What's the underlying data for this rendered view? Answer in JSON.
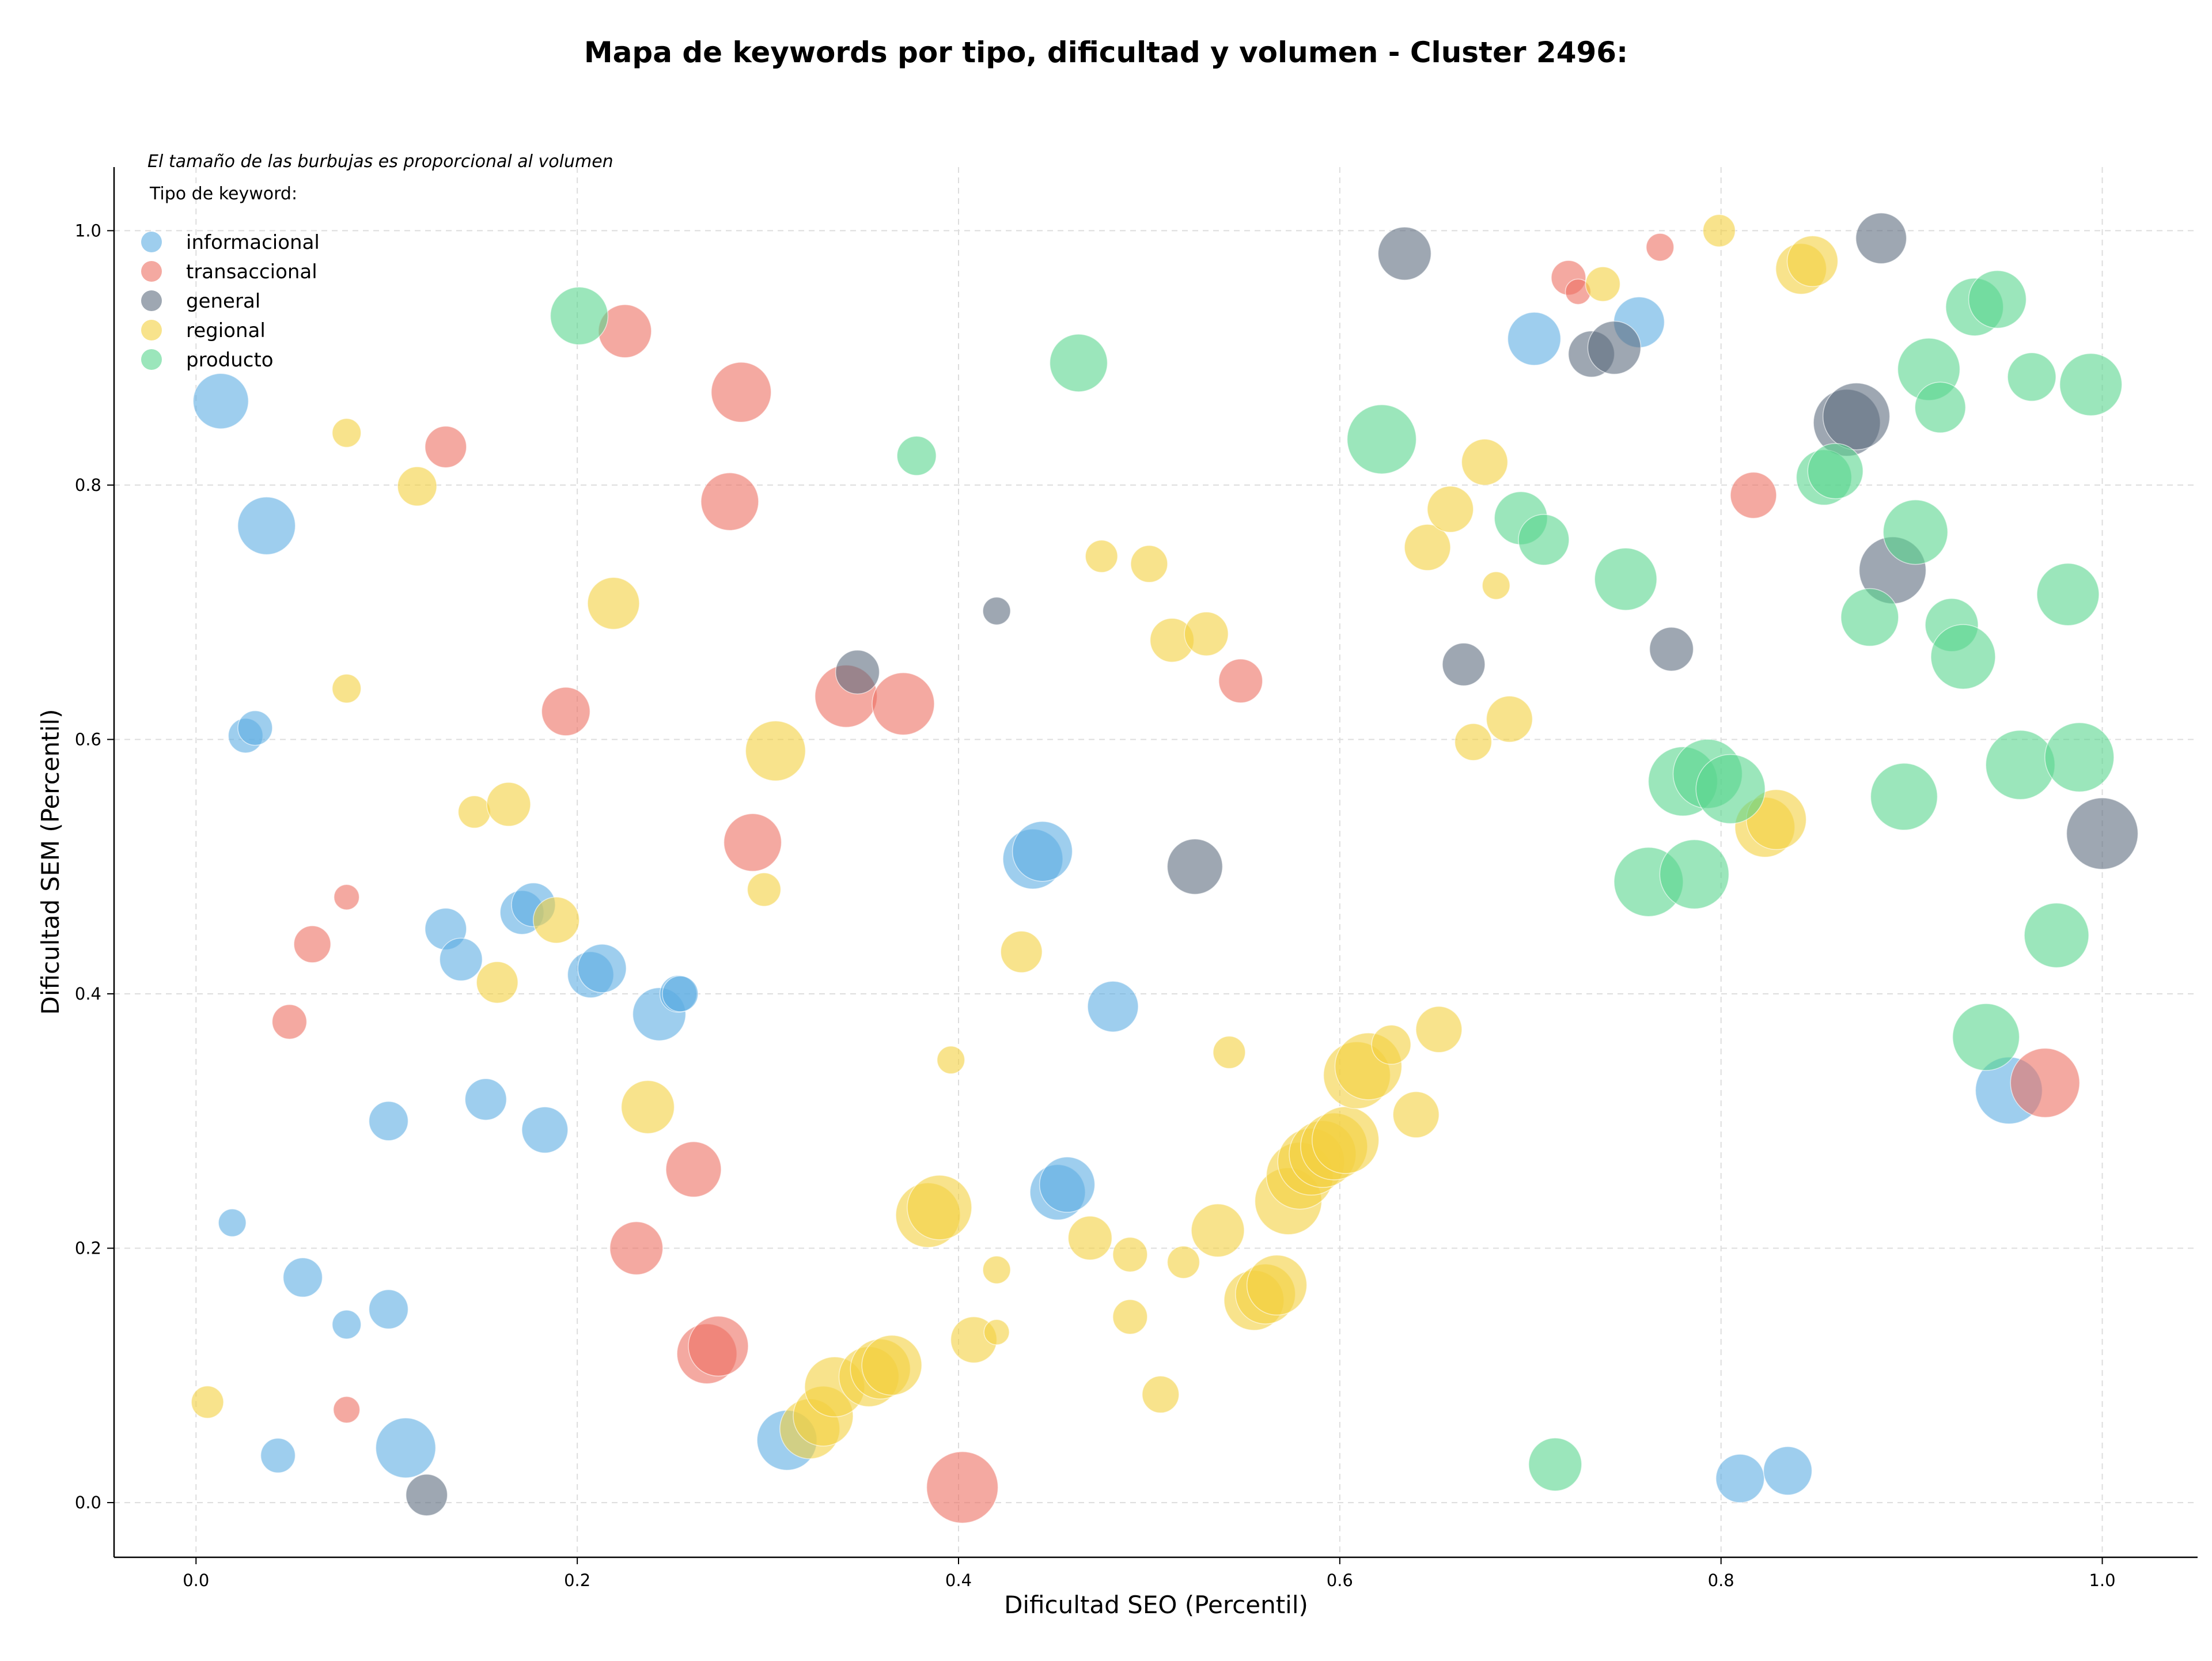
{
  "chart_data": {
    "type": "scatter",
    "title": "Mapa de keywords por tipo, dificultad y volumen - Cluster 2496:",
    "xlabel": "Dificultad SEO (Percentil)",
    "ylabel": "Dificultad SEM (Percentil)",
    "xlim": [
      -0.043,
      1.05
    ],
    "ylim": [
      -0.043,
      1.05
    ],
    "xticks": [
      "0.0",
      "0.2",
      "0.4",
      "0.6",
      "0.8",
      "1.0"
    ],
    "yticks": [
      "0.0",
      "0.2",
      "0.4",
      "0.6",
      "0.8",
      "1.0"
    ],
    "grid": true,
    "legend_position": "top-left",
    "legend_title": "Tipo de keyword:",
    "note": "El tamaño de las burbujas es proporcional al volumen",
    "series": [
      {
        "name": "informacional",
        "color": "#5dade2",
        "points": [
          [
            0.013,
            0.866,
            48
          ],
          [
            0.037,
            0.768,
            50
          ],
          [
            0.026,
            0.603,
            30
          ],
          [
            0.031,
            0.609,
            30
          ],
          [
            0.019,
            0.22,
            24
          ],
          [
            0.056,
            0.177,
            34
          ],
          [
            0.043,
            0.037,
            30
          ],
          [
            0.079,
            0.14,
            25
          ],
          [
            0.101,
            0.152,
            34
          ],
          [
            0.101,
            0.3,
            34
          ],
          [
            0.11,
            0.043,
            52
          ],
          [
            0.131,
            0.451,
            36
          ],
          [
            0.139,
            0.427,
            37
          ],
          [
            0.152,
            0.317,
            36
          ],
          [
            0.171,
            0.464,
            38
          ],
          [
            0.177,
            0.47,
            38
          ],
          [
            0.183,
            0.293,
            40
          ],
          [
            0.207,
            0.415,
            40
          ],
          [
            0.213,
            0.42,
            42
          ],
          [
            0.243,
            0.384,
            46
          ],
          [
            0.253,
            0.4,
            32
          ],
          [
            0.254,
            0.4,
            31
          ],
          [
            0.31,
            0.049,
            52
          ],
          [
            0.439,
            0.506,
            52
          ],
          [
            0.444,
            0.512,
            52
          ],
          [
            0.452,
            0.244,
            48
          ],
          [
            0.457,
            0.25,
            48
          ],
          [
            0.481,
            0.39,
            44
          ],
          [
            0.702,
            0.915,
            46
          ],
          [
            0.757,
            0.928,
            44
          ],
          [
            0.81,
            0.019,
            42
          ],
          [
            0.835,
            0.025,
            42
          ],
          [
            0.951,
            0.324,
            58
          ]
        ]
      },
      {
        "name": "transaccional",
        "color": "#ec7063",
        "points": [
          [
            0.049,
            0.378,
            30
          ],
          [
            0.061,
            0.439,
            32
          ],
          [
            0.079,
            0.476,
            22
          ],
          [
            0.079,
            0.073,
            23
          ],
          [
            0.131,
            0.83,
            36
          ],
          [
            0.194,
            0.622,
            42
          ],
          [
            0.225,
            0.921,
            46
          ],
          [
            0.231,
            0.2,
            46
          ],
          [
            0.261,
            0.262,
            48
          ],
          [
            0.268,
            0.117,
            52
          ],
          [
            0.274,
            0.123,
            52
          ],
          [
            0.28,
            0.787,
            50
          ],
          [
            0.286,
            0.873,
            52
          ],
          [
            0.292,
            0.519,
            50
          ],
          [
            0.341,
            0.634,
            54
          ],
          [
            0.371,
            0.628,
            54
          ],
          [
            0.402,
            0.012,
            62
          ],
          [
            0.548,
            0.646,
            38
          ],
          [
            0.72,
            0.963,
            30
          ],
          [
            0.725,
            0.952,
            22
          ],
          [
            0.768,
            0.987,
            24
          ],
          [
            0.817,
            0.792,
            40
          ],
          [
            0.97,
            0.33,
            60
          ]
        ]
      },
      {
        "name": "general",
        "color": "#5d6d7e",
        "points": [
          [
            0.121,
            0.006,
            36
          ],
          [
            0.347,
            0.653,
            38
          ],
          [
            0.42,
            0.701,
            24
          ],
          [
            0.524,
            0.5,
            48
          ],
          [
            0.634,
            0.982,
            46
          ],
          [
            0.665,
            0.659,
            37
          ],
          [
            0.732,
            0.903,
            40
          ],
          [
            0.744,
            0.908,
            46
          ],
          [
            0.774,
            0.671,
            38
          ],
          [
            0.866,
            0.849,
            58
          ],
          [
            0.871,
            0.854,
            58
          ],
          [
            0.884,
            0.994,
            44
          ],
          [
            0.89,
            0.733,
            58
          ],
          [
            1.0,
            0.526,
            62
          ]
        ]
      },
      {
        "name": "regional",
        "color": "#f4d03f",
        "points": [
          [
            0.006,
            0.079,
            28
          ],
          [
            0.079,
            0.841,
            25
          ],
          [
            0.079,
            0.64,
            25
          ],
          [
            0.116,
            0.799,
            34
          ],
          [
            0.146,
            0.543,
            28
          ],
          [
            0.158,
            0.409,
            36
          ],
          [
            0.164,
            0.549,
            38
          ],
          [
            0.189,
            0.458,
            40
          ],
          [
            0.219,
            0.707,
            45
          ],
          [
            0.237,
            0.311,
            46
          ],
          [
            0.298,
            0.482,
            29
          ],
          [
            0.304,
            0.591,
            52
          ],
          [
            0.322,
            0.058,
            52
          ],
          [
            0.329,
            0.068,
            52
          ],
          [
            0.335,
            0.091,
            52
          ],
          [
            0.353,
            0.099,
            52
          ],
          [
            0.359,
            0.105,
            52
          ],
          [
            0.365,
            0.108,
            52
          ],
          [
            0.384,
            0.226,
            56
          ],
          [
            0.39,
            0.232,
            56
          ],
          [
            0.396,
            0.348,
            24
          ],
          [
            0.408,
            0.128,
            40
          ],
          [
            0.42,
            0.183,
            24
          ],
          [
            0.42,
            0.134,
            22
          ],
          [
            0.433,
            0.433,
            36
          ],
          [
            0.469,
            0.208,
            38
          ],
          [
            0.475,
            0.744,
            28
          ],
          [
            0.49,
            0.195,
            30
          ],
          [
            0.49,
            0.146,
            30
          ],
          [
            0.5,
            0.738,
            32
          ],
          [
            0.506,
            0.085,
            32
          ],
          [
            0.512,
            0.678,
            38
          ],
          [
            0.518,
            0.189,
            28
          ],
          [
            0.53,
            0.683,
            38
          ],
          [
            0.536,
            0.214,
            46
          ],
          [
            0.542,
            0.354,
            28
          ],
          [
            0.555,
            0.159,
            52
          ],
          [
            0.561,
            0.164,
            52
          ],
          [
            0.567,
            0.171,
            52
          ],
          [
            0.573,
            0.237,
            58
          ],
          [
            0.579,
            0.257,
            58
          ],
          [
            0.585,
            0.268,
            58
          ],
          [
            0.591,
            0.274,
            58
          ],
          [
            0.597,
            0.28,
            58
          ],
          [
            0.603,
            0.285,
            58
          ],
          [
            0.609,
            0.336,
            58
          ],
          [
            0.615,
            0.343,
            58
          ],
          [
            0.627,
            0.36,
            34
          ],
          [
            0.64,
            0.305,
            40
          ],
          [
            0.646,
            0.751,
            40
          ],
          [
            0.652,
            0.372,
            40
          ],
          [
            0.658,
            0.781,
            40
          ],
          [
            0.67,
            0.598,
            32
          ],
          [
            0.676,
            0.818,
            40
          ],
          [
            0.682,
            0.721,
            24
          ],
          [
            0.689,
            0.616,
            40
          ],
          [
            0.738,
            0.958,
            30
          ],
          [
            0.799,
            1.0,
            28
          ],
          [
            0.823,
            0.531,
            52
          ],
          [
            0.829,
            0.537,
            52
          ],
          [
            0.842,
            0.97,
            44
          ],
          [
            0.848,
            0.976,
            44
          ]
        ]
      },
      {
        "name": "producto",
        "color": "#58d68d",
        "points": [
          [
            0.201,
            0.933,
            50
          ],
          [
            0.378,
            0.823,
            34
          ],
          [
            0.463,
            0.896,
            50
          ],
          [
            0.622,
            0.836,
            60
          ],
          [
            0.695,
            0.774,
            46
          ],
          [
            0.707,
            0.757,
            44
          ],
          [
            0.713,
            0.03,
            46
          ],
          [
            0.75,
            0.726,
            54
          ],
          [
            0.762,
            0.488,
            60
          ],
          [
            0.78,
            0.567,
            60
          ],
          [
            0.786,
            0.494,
            60
          ],
          [
            0.793,
            0.573,
            60
          ],
          [
            0.805,
            0.561,
            60
          ],
          [
            0.854,
            0.806,
            48
          ],
          [
            0.86,
            0.811,
            48
          ],
          [
            0.878,
            0.696,
            50
          ],
          [
            0.896,
            0.555,
            58
          ],
          [
            0.902,
            0.763,
            56
          ],
          [
            0.909,
            0.891,
            54
          ],
          [
            0.915,
            0.861,
            44
          ],
          [
            0.921,
            0.69,
            46
          ],
          [
            0.927,
            0.665,
            56
          ],
          [
            0.933,
            0.94,
            50
          ],
          [
            0.939,
            0.366,
            58
          ],
          [
            0.945,
            0.946,
            50
          ],
          [
            0.957,
            0.58,
            60
          ],
          [
            0.963,
            0.885,
            42
          ],
          [
            0.976,
            0.446,
            56
          ],
          [
            0.982,
            0.714,
            54
          ],
          [
            0.988,
            0.586,
            60
          ],
          [
            0.994,
            0.879,
            54
          ]
        ]
      }
    ]
  }
}
